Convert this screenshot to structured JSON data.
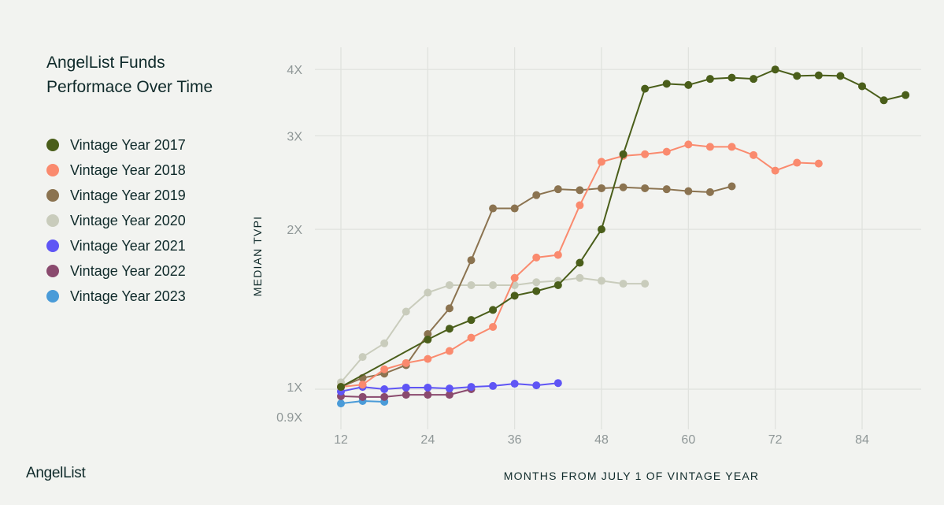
{
  "brand": "AngelList",
  "chart_data": {
    "type": "line",
    "title": "AngelList Funds Performace Over Time",
    "xlabel": "MONTHS FROM JULY 1 OF VINTAGE YEAR",
    "ylabel": "MEDIAN TVPI",
    "xlim": [
      8,
      92
    ],
    "ylim": [
      0.88,
      4.3
    ],
    "y_scale": "log",
    "x_ticks": [
      12,
      24,
      36,
      48,
      60,
      72,
      84
    ],
    "x_tick_labels": [
      "12",
      "24",
      "36",
      "48",
      "60",
      "72",
      "84"
    ],
    "y_ticks": [
      0.9,
      1,
      2,
      3,
      4
    ],
    "y_tick_labels": [
      "0.9X",
      "1X",
      "2X",
      "3X",
      "4X"
    ],
    "grid": true,
    "legend_position": "left",
    "series": [
      {
        "name": "Vintage Year 2017",
        "color": "#4a5e1a",
        "x": [
          12,
          24,
          27,
          30,
          33,
          36,
          39,
          42,
          45,
          48,
          51,
          54,
          57,
          60,
          63,
          66,
          69,
          72,
          75,
          78,
          81,
          84,
          87,
          90
        ],
        "y": [
          1.01,
          1.24,
          1.3,
          1.35,
          1.41,
          1.5,
          1.53,
          1.57,
          1.73,
          2.0,
          2.77,
          3.68,
          3.76,
          3.74,
          3.84,
          3.86,
          3.84,
          4.0,
          3.89,
          3.9,
          3.89,
          3.72,
          3.5,
          3.58
        ]
      },
      {
        "name": "Vintage Year 2018",
        "color": "#fa8a6e",
        "x": [
          12,
          15,
          18,
          21,
          24,
          27,
          30,
          33,
          36,
          39,
          42,
          45,
          48,
          51,
          54,
          57,
          60,
          63,
          66,
          69,
          72,
          75,
          78
        ],
        "y": [
          1.01,
          1.02,
          1.09,
          1.12,
          1.14,
          1.18,
          1.25,
          1.31,
          1.62,
          1.77,
          1.79,
          2.22,
          2.68,
          2.75,
          2.77,
          2.8,
          2.89,
          2.86,
          2.86,
          2.76,
          2.58,
          2.67,
          2.66
        ]
      },
      {
        "name": "Vintage Year 2019",
        "color": "#8b7350",
        "x": [
          12,
          15,
          18,
          21,
          24,
          27,
          30,
          33,
          36,
          39,
          42,
          45,
          48,
          51,
          54,
          57,
          60,
          63,
          66
        ],
        "y": [
          1.01,
          1.05,
          1.07,
          1.11,
          1.27,
          1.42,
          1.75,
          2.19,
          2.19,
          2.32,
          2.38,
          2.37,
          2.39,
          2.4,
          2.39,
          2.38,
          2.36,
          2.35,
          2.41
        ]
      },
      {
        "name": "Vintage Year 2020",
        "color": "#c9ccbc",
        "x": [
          12,
          15,
          18,
          21,
          24,
          27,
          30,
          33,
          36,
          39,
          42,
          45,
          48,
          51,
          54
        ],
        "y": [
          1.03,
          1.15,
          1.22,
          1.4,
          1.52,
          1.57,
          1.57,
          1.57,
          1.57,
          1.59,
          1.6,
          1.62,
          1.6,
          1.58,
          1.58
        ]
      },
      {
        "name": "Vintage Year 2021",
        "color": "#5f55f5",
        "x": [
          12,
          15,
          18,
          21,
          24,
          27,
          30,
          33,
          36,
          39,
          42
        ],
        "y": [
          0.99,
          1.01,
          1.0,
          1.007,
          1.007,
          1.003,
          1.01,
          1.014,
          1.024,
          1.017,
          1.027
        ]
      },
      {
        "name": "Vintage Year 2022",
        "color": "#8a4a6e",
        "x": [
          12,
          15,
          18,
          21,
          24,
          27,
          30
        ],
        "y": [
          0.97,
          0.967,
          0.967,
          0.976,
          0.976,
          0.976,
          1.0
        ]
      },
      {
        "name": "Vintage Year 2023",
        "color": "#4a9bd8",
        "x": [
          12,
          15,
          18
        ],
        "y": [
          0.94,
          0.95,
          0.947
        ]
      }
    ]
  }
}
